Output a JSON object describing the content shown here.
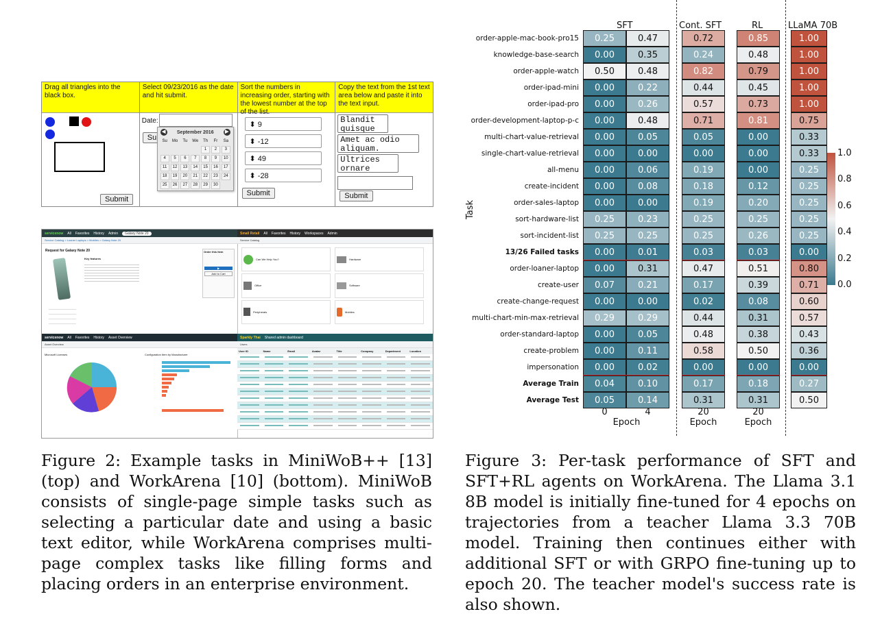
{
  "figure2": {
    "caption": "Figure 2: Example tasks in MiniWoB++ [13] (top) and WorkArena [10] (bottom). MiniWoB consists of single-page simple tasks such as selecting a particular date and using a basic text editor, while WorkArena comprises multi-page complex tasks like filling forms and placing orders in an enterprise environment.",
    "miniwob": {
      "tasks": [
        "Drag all triangles into the black box.",
        "Select 09/23/2016 as the date and hit submit.",
        "Sort the numbers in increasing order, starting with the lowest number at the top of the list.",
        "Copy the text from the 1st text area below and paste it into the text input."
      ],
      "submit_label": "Submit",
      "sub_label": "Sub",
      "date_label": "Date:",
      "calendar_month": "September 2016",
      "weekdays": [
        "Su",
        "Mo",
        "Tu",
        "We",
        "Th",
        "Fr",
        "Sa"
      ],
      "calendar_days": [
        "",
        "",
        "",
        "",
        "1",
        "2",
        "3",
        "4",
        "5",
        "6",
        "7",
        "8",
        "9",
        "10",
        "11",
        "12",
        "13",
        "14",
        "15",
        "16",
        "17",
        "18",
        "19",
        "20",
        "21",
        "22",
        "23",
        "24",
        "25",
        "26",
        "27",
        "28",
        "29",
        "30",
        ""
      ],
      "numbers": [
        "9",
        "-12",
        "49",
        "-28"
      ],
      "text_areas": [
        "Blandit quisque",
        "Amet ac odio aliquam.",
        "Ultrices ornare"
      ]
    },
    "workarena": {
      "panel1": {
        "brand": "servicenow",
        "nav": [
          "All",
          "Favorites",
          "History",
          "Admin"
        ],
        "tab": "Galaxy Note 20",
        "breadcrumb": "Service Catalog > Loaner Laptops > Mobiles > Galaxy Note 20",
        "request": "Request for Galaxy Note 20",
        "item": "Key features",
        "order": "Order this Item",
        "add_cart": "Add to Cart"
      },
      "panel2": {
        "brand": "Small Retail",
        "nav": [
          "All",
          "Favorites",
          "History",
          "Workspaces",
          "Admin"
        ],
        "title": "Service Catalog",
        "items": [
          "Can We Help You?",
          "Hardware",
          "Office",
          "Software",
          "Peripherals",
          "Mobiles"
        ]
      },
      "panel3": {
        "brand": "servicenow",
        "nav": [
          "All",
          "Favorites",
          "History"
        ],
        "tab": "Asset Overview",
        "left_title": "Microsoft Licenses",
        "right_title": "Configuration Item by Manufacturer",
        "pie_colors": [
          "#4ab4d8",
          "#f06a44",
          "#5f3fd6",
          "#d93aa3",
          "#6ac06a"
        ]
      },
      "panel4": {
        "brand": "Sparkly Thai",
        "tab": "Shared admin dashboard",
        "list": "Users",
        "headers": [
          "User ID",
          "Name",
          "Email",
          "Avatar",
          "Title",
          "Company",
          "Department",
          "Location"
        ]
      }
    }
  },
  "figure3": {
    "caption": "Figure 3: Per-task performance of SFT and SFT+RL agents on WorkArena. The Llama 3.1 8B model is initially fine-tuned for 4 epochs on trajectories from a teacher Llama 3.3 70B model. Training then continues either with additional SFT or with GRPO fine-tuning up to epoch 20. The teacher model's success rate is also shown.",
    "chart_data": {
      "type": "heatmap",
      "ylabel": "Task",
      "groups": [
        "SFT",
        "Cont. SFT",
        "RL",
        "LLaMA 70B"
      ],
      "columns": [
        {
          "group": "SFT",
          "epoch": "0"
        },
        {
          "group": "SFT",
          "epoch": "4"
        },
        {
          "group": "Cont. SFT",
          "epoch": "20"
        },
        {
          "group": "RL",
          "epoch": "20"
        },
        {
          "group": "LLaMA 70B",
          "epoch": ""
        }
      ],
      "xlabel": "Epoch",
      "rows": [
        {
          "task": "order-apple-mac-book-pro15",
          "values": [
            0.25,
            0.47,
            0.72,
            0.85,
            1.0
          ]
        },
        {
          "task": "knowledge-base-search",
          "values": [
            0.0,
            0.35,
            0.24,
            0.48,
            1.0
          ]
        },
        {
          "task": "order-apple-watch",
          "values": [
            0.5,
            0.48,
            0.82,
            0.79,
            1.0
          ]
        },
        {
          "task": "order-ipad-mini",
          "values": [
            0.0,
            0.22,
            0.44,
            0.45,
            1.0
          ]
        },
        {
          "task": "order-ipad-pro",
          "values": [
            0.0,
            0.26,
            0.57,
            0.73,
            1.0
          ]
        },
        {
          "task": "order-development-laptop-p-c",
          "values": [
            0.0,
            0.48,
            0.71,
            0.81,
            0.75
          ]
        },
        {
          "task": "multi-chart-value-retrieval",
          "values": [
            0.0,
            0.05,
            0.05,
            0.0,
            0.33
          ]
        },
        {
          "task": "single-chart-value-retrieval",
          "values": [
            0.0,
            0.0,
            0.0,
            0.0,
            0.33
          ]
        },
        {
          "task": "all-menu",
          "values": [
            0.0,
            0.06,
            0.19,
            0.0,
            0.25
          ]
        },
        {
          "task": "create-incident",
          "values": [
            0.0,
            0.08,
            0.18,
            0.12,
            0.25
          ]
        },
        {
          "task": "order-sales-laptop",
          "values": [
            0.0,
            0.0,
            0.19,
            0.2,
            0.25
          ]
        },
        {
          "task": "sort-hardware-list",
          "values": [
            0.25,
            0.23,
            0.25,
            0.25,
            0.25
          ]
        },
        {
          "task": "sort-incident-list",
          "values": [
            0.25,
            0.25,
            0.25,
            0.26,
            0.25
          ]
        },
        {
          "task": "13/26 Failed tasks",
          "values": [
            0.0,
            0.01,
            0.03,
            0.03,
            0.0
          ],
          "bold": true
        },
        {
          "task": "order-loaner-laptop",
          "values": [
            0.0,
            0.31,
            0.47,
            0.51,
            0.8
          ]
        },
        {
          "task": "create-user",
          "values": [
            0.07,
            0.21,
            0.17,
            0.39,
            0.71
          ]
        },
        {
          "task": "create-change-request",
          "values": [
            0.0,
            0.0,
            0.02,
            0.08,
            0.6
          ]
        },
        {
          "task": "multi-chart-min-max-retrieval",
          "values": [
            0.29,
            0.29,
            0.44,
            0.31,
            0.57
          ]
        },
        {
          "task": "order-standard-laptop",
          "values": [
            0.0,
            0.05,
            0.48,
            0.38,
            0.43
          ]
        },
        {
          "task": "create-problem",
          "values": [
            0.0,
            0.11,
            0.58,
            0.5,
            0.36
          ]
        },
        {
          "task": "impersonation",
          "values": [
            0.0,
            0.02,
            0.0,
            0.0,
            0.0
          ]
        },
        {
          "task": "Average Train",
          "values": [
            0.04,
            0.1,
            0.17,
            0.18,
            0.27
          ],
          "bold": true
        },
        {
          "task": "Average Test",
          "values": [
            0.05,
            0.14,
            0.31,
            0.31,
            0.5
          ],
          "bold": true
        }
      ],
      "separators_after_rows": [
        "13/26 Failed tasks",
        "impersonation"
      ],
      "colorbar": {
        "min": 0.0,
        "max": 1.0,
        "ticks": [
          "0.0",
          "0.2",
          "0.4",
          "0.6",
          "0.8",
          "1.0"
        ],
        "low_color": "#3b7a8f",
        "mid_color": "#f2f2f2",
        "high_color": "#c0533e"
      },
      "vmin": 0.0,
      "vmax": 1.0
    }
  }
}
